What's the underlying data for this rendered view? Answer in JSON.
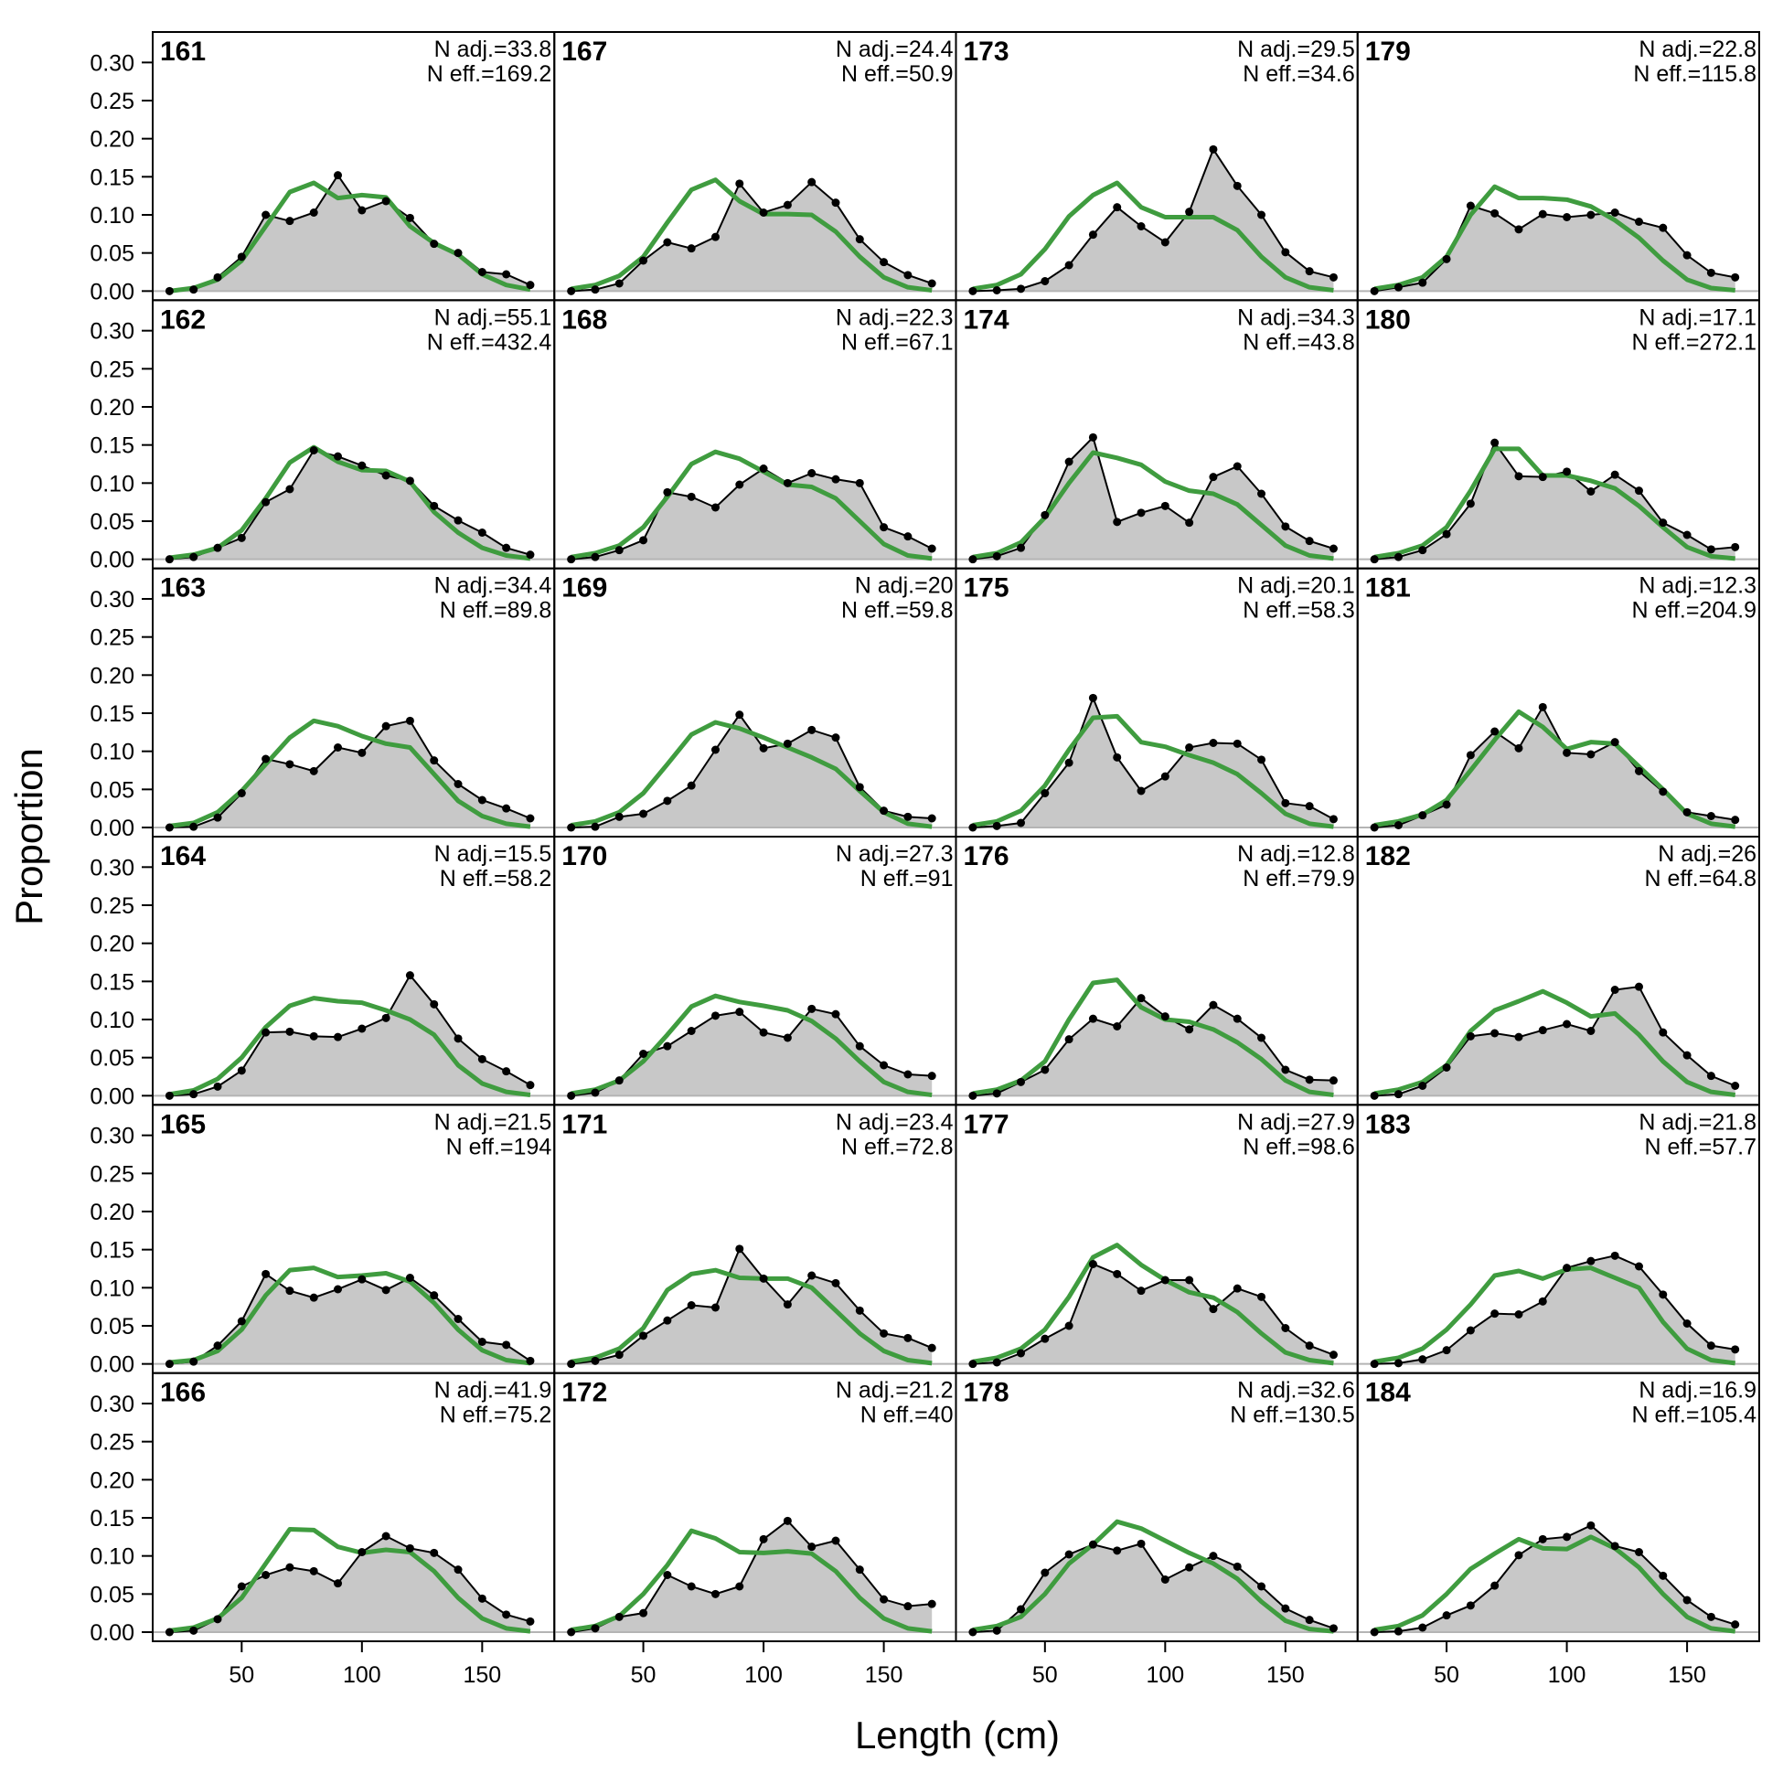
{
  "chart_data": {
    "type": "area",
    "layout": {
      "columns": 4,
      "rows": 6,
      "order": "column-major"
    },
    "xlabel": "Length (cm)",
    "ylabel": "Proportion",
    "xlim": [
      13,
      180
    ],
    "ylim": [
      -0.012,
      0.34
    ],
    "xticks": [
      50,
      100,
      150
    ],
    "yticks": [
      0.0,
      0.05,
      0.1,
      0.15,
      0.2,
      0.25,
      0.3
    ],
    "x": [
      20,
      30,
      40,
      50,
      60,
      70,
      80,
      90,
      100,
      110,
      120,
      130,
      140,
      150,
      160,
      170
    ],
    "colors": {
      "observed_fill": "#c8c8c8",
      "observed_line": "#000000",
      "expected_line": "#3f9c3f",
      "zero_line": "#b4b4b4"
    },
    "series_styles": [
      "observed: grey area with black points",
      "expected: green line"
    ],
    "panels": [
      {
        "label": "161",
        "n_adj_text": "N adj.=33.8",
        "n_eff_text": "N eff.=169.2",
        "observed": [
          0.0,
          0.002,
          0.018,
          0.045,
          0.1,
          0.092,
          0.103,
          0.152,
          0.106,
          0.118,
          0.096,
          0.062,
          0.05,
          0.025,
          0.022,
          0.008
        ],
        "expected": [
          0.0,
          0.004,
          0.015,
          0.04,
          0.085,
          0.13,
          0.142,
          0.122,
          0.126,
          0.123,
          0.085,
          0.063,
          0.048,
          0.022,
          0.008,
          0.002
        ]
      },
      {
        "label": "162",
        "n_adj_text": "N adj.=55.1",
        "n_eff_text": "N eff.=432.4",
        "observed": [
          0.0,
          0.003,
          0.015,
          0.028,
          0.075,
          0.092,
          0.143,
          0.135,
          0.123,
          0.11,
          0.103,
          0.07,
          0.051,
          0.035,
          0.015,
          0.006
        ],
        "expected": [
          0.002,
          0.006,
          0.015,
          0.038,
          0.08,
          0.127,
          0.147,
          0.128,
          0.117,
          0.116,
          0.102,
          0.062,
          0.035,
          0.015,
          0.005,
          0.001
        ]
      },
      {
        "label": "163",
        "n_adj_text": "N adj.=34.4",
        "n_eff_text": "N eff.=89.8",
        "observed": [
          0.0,
          0.001,
          0.013,
          0.045,
          0.09,
          0.083,
          0.074,
          0.105,
          0.098,
          0.133,
          0.14,
          0.088,
          0.057,
          0.036,
          0.025,
          0.012
        ],
        "expected": [
          0.002,
          0.006,
          0.02,
          0.048,
          0.083,
          0.118,
          0.14,
          0.133,
          0.12,
          0.11,
          0.105,
          0.07,
          0.035,
          0.015,
          0.005,
          0.001
        ]
      },
      {
        "label": "164",
        "n_adj_text": "N adj.=15.5",
        "n_eff_text": "N eff.=58.2",
        "observed": [
          0.0,
          0.002,
          0.012,
          0.033,
          0.083,
          0.084,
          0.078,
          0.077,
          0.088,
          0.102,
          0.158,
          0.12,
          0.075,
          0.048,
          0.032,
          0.014
        ],
        "expected": [
          0.002,
          0.007,
          0.022,
          0.05,
          0.09,
          0.118,
          0.128,
          0.124,
          0.122,
          0.112,
          0.1,
          0.08,
          0.04,
          0.016,
          0.005,
          0.001
        ]
      },
      {
        "label": "165",
        "n_adj_text": "N adj.=21.5",
        "n_eff_text": "N eff.=194",
        "observed": [
          0.0,
          0.003,
          0.024,
          0.056,
          0.118,
          0.096,
          0.087,
          0.098,
          0.111,
          0.097,
          0.113,
          0.09,
          0.059,
          0.029,
          0.025,
          0.004
        ],
        "expected": [
          0.002,
          0.005,
          0.017,
          0.045,
          0.09,
          0.123,
          0.126,
          0.114,
          0.116,
          0.119,
          0.108,
          0.08,
          0.045,
          0.018,
          0.005,
          0.001
        ]
      },
      {
        "label": "166",
        "n_adj_text": "N adj.=41.9",
        "n_eff_text": "N eff.=75.2",
        "observed": [
          0.0,
          0.002,
          0.017,
          0.06,
          0.075,
          0.085,
          0.08,
          0.064,
          0.105,
          0.126,
          0.11,
          0.104,
          0.082,
          0.044,
          0.023,
          0.014
        ],
        "expected": [
          0.002,
          0.006,
          0.018,
          0.045,
          0.09,
          0.135,
          0.134,
          0.112,
          0.104,
          0.108,
          0.105,
          0.08,
          0.045,
          0.018,
          0.005,
          0.001
        ]
      },
      {
        "label": "167",
        "n_adj_text": "N adj.=24.4",
        "n_eff_text": "N eff.=50.9",
        "observed": [
          0.0,
          0.002,
          0.01,
          0.04,
          0.064,
          0.056,
          0.071,
          0.141,
          0.103,
          0.113,
          0.143,
          0.116,
          0.068,
          0.038,
          0.021,
          0.01
        ],
        "expected": [
          0.003,
          0.008,
          0.02,
          0.045,
          0.09,
          0.133,
          0.146,
          0.118,
          0.101,
          0.101,
          0.1,
          0.078,
          0.045,
          0.018,
          0.005,
          0.001
        ]
      },
      {
        "label": "168",
        "n_adj_text": "N adj.=22.3",
        "n_eff_text": "N eff.=67.1",
        "observed": [
          0.0,
          0.003,
          0.012,
          0.025,
          0.088,
          0.082,
          0.068,
          0.098,
          0.119,
          0.1,
          0.113,
          0.105,
          0.1,
          0.042,
          0.03,
          0.014
        ],
        "expected": [
          0.003,
          0.008,
          0.018,
          0.042,
          0.082,
          0.125,
          0.141,
          0.132,
          0.115,
          0.098,
          0.095,
          0.08,
          0.05,
          0.02,
          0.005,
          0.001
        ]
      },
      {
        "label": "169",
        "n_adj_text": "N adj.=20",
        "n_eff_text": "N eff.=59.8",
        "observed": [
          0.0,
          0.001,
          0.014,
          0.018,
          0.035,
          0.055,
          0.102,
          0.148,
          0.104,
          0.11,
          0.128,
          0.118,
          0.053,
          0.022,
          0.014,
          0.012
        ],
        "expected": [
          0.003,
          0.008,
          0.02,
          0.045,
          0.083,
          0.122,
          0.138,
          0.13,
          0.118,
          0.105,
          0.092,
          0.077,
          0.048,
          0.02,
          0.005,
          0.001
        ]
      },
      {
        "label": "170",
        "n_adj_text": "N adj.=27.3",
        "n_eff_text": "N eff.=91",
        "observed": [
          0.0,
          0.004,
          0.02,
          0.055,
          0.065,
          0.085,
          0.105,
          0.11,
          0.083,
          0.076,
          0.114,
          0.107,
          0.065,
          0.04,
          0.028,
          0.026
        ],
        "expected": [
          0.003,
          0.008,
          0.02,
          0.045,
          0.08,
          0.117,
          0.131,
          0.123,
          0.118,
          0.112,
          0.098,
          0.075,
          0.045,
          0.018,
          0.005,
          0.001
        ]
      },
      {
        "label": "171",
        "n_adj_text": "N adj.=23.4",
        "n_eff_text": "N eff.=72.8",
        "observed": [
          0.0,
          0.004,
          0.012,
          0.037,
          0.057,
          0.077,
          0.074,
          0.151,
          0.112,
          0.078,
          0.116,
          0.106,
          0.07,
          0.04,
          0.034,
          0.021
        ],
        "expected": [
          0.003,
          0.008,
          0.02,
          0.047,
          0.097,
          0.118,
          0.123,
          0.113,
          0.112,
          0.112,
          0.1,
          0.07,
          0.04,
          0.017,
          0.005,
          0.001
        ]
      },
      {
        "label": "172",
        "n_adj_text": "N adj.=21.2",
        "n_eff_text": "N eff.=40",
        "observed": [
          0.0,
          0.005,
          0.02,
          0.025,
          0.075,
          0.06,
          0.05,
          0.06,
          0.122,
          0.146,
          0.112,
          0.12,
          0.082,
          0.043,
          0.034,
          0.037
        ],
        "expected": [
          0.003,
          0.008,
          0.021,
          0.05,
          0.088,
          0.133,
          0.123,
          0.105,
          0.104,
          0.106,
          0.103,
          0.08,
          0.045,
          0.018,
          0.005,
          0.001
        ]
      },
      {
        "label": "173",
        "n_adj_text": "N adj.=29.5",
        "n_eff_text": "N eff.=34.6",
        "observed": [
          0.0,
          0.001,
          0.003,
          0.013,
          0.034,
          0.074,
          0.11,
          0.085,
          0.064,
          0.104,
          0.186,
          0.138,
          0.1,
          0.051,
          0.026,
          0.018
        ],
        "expected": [
          0.003,
          0.008,
          0.022,
          0.055,
          0.098,
          0.126,
          0.142,
          0.11,
          0.097,
          0.097,
          0.097,
          0.08,
          0.045,
          0.018,
          0.005,
          0.001
        ]
      },
      {
        "label": "174",
        "n_adj_text": "N adj.=34.3",
        "n_eff_text": "N eff.=43.8",
        "observed": [
          0.0,
          0.004,
          0.015,
          0.058,
          0.128,
          0.16,
          0.049,
          0.061,
          0.07,
          0.048,
          0.108,
          0.122,
          0.086,
          0.043,
          0.024,
          0.014
        ],
        "expected": [
          0.003,
          0.008,
          0.022,
          0.055,
          0.1,
          0.14,
          0.133,
          0.124,
          0.102,
          0.09,
          0.086,
          0.072,
          0.045,
          0.018,
          0.005,
          0.001
        ]
      },
      {
        "label": "175",
        "n_adj_text": "N adj.=20.1",
        "n_eff_text": "N eff.=58.3",
        "observed": [
          0.0,
          0.002,
          0.006,
          0.045,
          0.085,
          0.17,
          0.092,
          0.048,
          0.067,
          0.105,
          0.111,
          0.11,
          0.089,
          0.032,
          0.028,
          0.011
        ],
        "expected": [
          0.003,
          0.008,
          0.022,
          0.055,
          0.102,
          0.144,
          0.146,
          0.112,
          0.106,
          0.095,
          0.085,
          0.07,
          0.045,
          0.018,
          0.005,
          0.001
        ]
      },
      {
        "label": "176",
        "n_adj_text": "N adj.=12.8",
        "n_eff_text": "N eff.=79.9",
        "observed": [
          0.0,
          0.003,
          0.018,
          0.034,
          0.074,
          0.101,
          0.091,
          0.128,
          0.104,
          0.087,
          0.119,
          0.101,
          0.076,
          0.034,
          0.021,
          0.02
        ],
        "expected": [
          0.003,
          0.008,
          0.02,
          0.045,
          0.1,
          0.148,
          0.152,
          0.116,
          0.1,
          0.097,
          0.087,
          0.07,
          0.048,
          0.02,
          0.005,
          0.001
        ]
      },
      {
        "label": "177",
        "n_adj_text": "N adj.=27.9",
        "n_eff_text": "N eff.=98.6",
        "observed": [
          0.0,
          0.002,
          0.014,
          0.033,
          0.05,
          0.131,
          0.118,
          0.096,
          0.11,
          0.11,
          0.072,
          0.099,
          0.088,
          0.047,
          0.024,
          0.012
        ],
        "expected": [
          0.003,
          0.008,
          0.02,
          0.045,
          0.088,
          0.14,
          0.156,
          0.13,
          0.11,
          0.094,
          0.087,
          0.068,
          0.04,
          0.015,
          0.005,
          0.001
        ]
      },
      {
        "label": "178",
        "n_adj_text": "N adj.=32.6",
        "n_eff_text": "N eff.=130.5",
        "observed": [
          0.0,
          0.002,
          0.03,
          0.078,
          0.102,
          0.115,
          0.107,
          0.116,
          0.069,
          0.085,
          0.1,
          0.086,
          0.06,
          0.031,
          0.016,
          0.005
        ],
        "expected": [
          0.003,
          0.008,
          0.02,
          0.05,
          0.09,
          0.115,
          0.145,
          0.136,
          0.12,
          0.104,
          0.09,
          0.07,
          0.04,
          0.015,
          0.004,
          0.001
        ]
      },
      {
        "label": "179",
        "n_adj_text": "N adj.=22.8",
        "n_eff_text": "N eff.=115.8",
        "observed": [
          0.0,
          0.005,
          0.011,
          0.042,
          0.112,
          0.102,
          0.081,
          0.101,
          0.097,
          0.1,
          0.103,
          0.091,
          0.083,
          0.047,
          0.024,
          0.018
        ],
        "expected": [
          0.003,
          0.008,
          0.018,
          0.045,
          0.1,
          0.137,
          0.122,
          0.122,
          0.12,
          0.111,
          0.093,
          0.07,
          0.04,
          0.015,
          0.004,
          0.001
        ]
      },
      {
        "label": "180",
        "n_adj_text": "N adj.=17.1",
        "n_eff_text": "N eff.=272.1",
        "observed": [
          0.0,
          0.003,
          0.012,
          0.033,
          0.073,
          0.153,
          0.109,
          0.108,
          0.115,
          0.089,
          0.111,
          0.09,
          0.048,
          0.032,
          0.013,
          0.016
        ],
        "expected": [
          0.003,
          0.008,
          0.018,
          0.042,
          0.09,
          0.145,
          0.145,
          0.11,
          0.11,
          0.103,
          0.093,
          0.07,
          0.042,
          0.016,
          0.004,
          0.001
        ]
      },
      {
        "label": "181",
        "n_adj_text": "N adj.=12.3",
        "n_eff_text": "N eff.=204.9",
        "observed": [
          0.0,
          0.003,
          0.016,
          0.03,
          0.095,
          0.126,
          0.104,
          0.158,
          0.098,
          0.096,
          0.112,
          0.074,
          0.047,
          0.02,
          0.015,
          0.01
        ],
        "expected": [
          0.003,
          0.008,
          0.017,
          0.036,
          0.075,
          0.115,
          0.152,
          0.132,
          0.103,
          0.112,
          0.11,
          0.08,
          0.05,
          0.018,
          0.005,
          0.001
        ]
      },
      {
        "label": "182",
        "n_adj_text": "N adj.=26",
        "n_eff_text": "N eff.=64.8",
        "observed": [
          0.0,
          0.002,
          0.013,
          0.037,
          0.078,
          0.082,
          0.077,
          0.086,
          0.094,
          0.085,
          0.139,
          0.143,
          0.083,
          0.053,
          0.026,
          0.013
        ],
        "expected": [
          0.003,
          0.008,
          0.018,
          0.04,
          0.085,
          0.112,
          0.124,
          0.137,
          0.122,
          0.104,
          0.108,
          0.08,
          0.045,
          0.018,
          0.005,
          0.001
        ]
      },
      {
        "label": "183",
        "n_adj_text": "N adj.=21.8",
        "n_eff_text": "N eff.=57.7",
        "observed": [
          0.0,
          0.001,
          0.006,
          0.018,
          0.044,
          0.066,
          0.065,
          0.082,
          0.126,
          0.135,
          0.142,
          0.128,
          0.091,
          0.053,
          0.024,
          0.019
        ],
        "expected": [
          0.003,
          0.008,
          0.02,
          0.045,
          0.078,
          0.116,
          0.122,
          0.112,
          0.124,
          0.126,
          0.113,
          0.1,
          0.055,
          0.02,
          0.005,
          0.001
        ]
      },
      {
        "label": "184",
        "n_adj_text": "N adj.=16.9",
        "n_eff_text": "N eff.=105.4",
        "observed": [
          0.0,
          0.001,
          0.006,
          0.022,
          0.035,
          0.061,
          0.101,
          0.122,
          0.125,
          0.14,
          0.113,
          0.105,
          0.074,
          0.042,
          0.02,
          0.01
        ],
        "expected": [
          0.003,
          0.008,
          0.022,
          0.05,
          0.083,
          0.103,
          0.122,
          0.11,
          0.109,
          0.125,
          0.11,
          0.085,
          0.05,
          0.02,
          0.005,
          0.001
        ]
      }
    ]
  }
}
